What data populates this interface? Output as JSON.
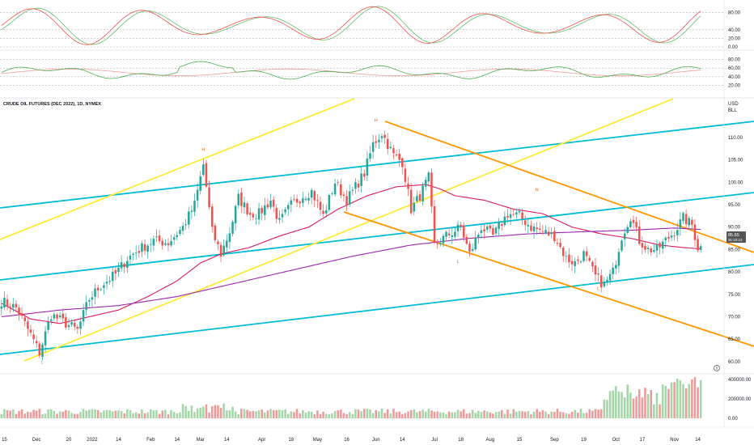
{
  "chart_data": {
    "type": "candlestick",
    "title": "CRUDE OIL FUTURES (DEC 2022), 1D, NYMEX",
    "currency": "USD",
    "unit": "BLL",
    "last_price": "85.65",
    "last_price_sub": "31:10:12",
    "price_ticks": [
      "110.00",
      "105.00",
      "100.00",
      "95.00",
      "90.00",
      "85.00",
      "80.00",
      "75.00",
      "70.00",
      "65.00",
      "60.00"
    ],
    "price_tick_values": [
      110,
      105,
      100,
      95,
      90,
      85,
      80,
      75,
      70,
      65,
      60
    ],
    "ylim": [
      58,
      119
    ],
    "x_tick_labels": [
      {
        "label": "15",
        "bar": 1
      },
      {
        "label": "Dec",
        "bar": 12
      },
      {
        "label": "20",
        "bar": 23
      },
      {
        "label": "2022",
        "bar": 31
      },
      {
        "label": "14",
        "bar": 40
      },
      {
        "label": "Feb",
        "bar": 51
      },
      {
        "label": "14",
        "bar": 60
      },
      {
        "label": "Mar",
        "bar": 68
      },
      {
        "label": "14",
        "bar": 77
      },
      {
        "label": "Apr",
        "bar": 89
      },
      {
        "label": "18",
        "bar": 99
      },
      {
        "label": "May",
        "bar": 108
      },
      {
        "label": "16",
        "bar": 118
      },
      {
        "label": "Jun",
        "bar": 128
      },
      {
        "label": "14",
        "bar": 137
      },
      {
        "label": "Jul",
        "bar": 148
      },
      {
        "label": "18",
        "bar": 157
      },
      {
        "label": "Aug",
        "bar": 167
      },
      {
        "label": "15",
        "bar": 177
      },
      {
        "label": "Sep",
        "bar": 189
      },
      {
        "label": "19",
        "bar": 199
      },
      {
        "label": "Oct",
        "bar": 210
      },
      {
        "label": "17",
        "bar": 219
      },
      {
        "label": "Nov",
        "bar": 230
      },
      {
        "label": "14",
        "bar": 238
      }
    ],
    "close_anchors": [
      [
        0,
        73.5
      ],
      [
        5,
        72
      ],
      [
        10,
        66
      ],
      [
        13,
        62
      ],
      [
        17,
        70.5
      ],
      [
        22,
        68.5
      ],
      [
        26,
        67
      ],
      [
        30,
        74
      ],
      [
        34,
        77
      ],
      [
        39,
        79.5
      ],
      [
        43,
        83
      ],
      [
        47,
        85
      ],
      [
        52,
        87
      ],
      [
        57,
        86.5
      ],
      [
        62,
        90
      ],
      [
        66,
        95
      ],
      [
        69,
        104
      ],
      [
        72,
        89
      ],
      [
        75,
        84
      ],
      [
        78,
        89
      ],
      [
        81,
        96.5
      ],
      [
        85,
        93
      ],
      [
        88,
        93
      ],
      [
        92,
        96
      ],
      [
        95,
        91
      ],
      [
        99,
        95
      ],
      [
        103,
        97
      ],
      [
        106,
        98
      ],
      [
        110,
        92.5
      ],
      [
        114,
        100
      ],
      [
        118,
        96
      ],
      [
        121,
        99
      ],
      [
        124,
        102
      ],
      [
        127,
        108.5
      ],
      [
        130,
        111
      ],
      [
        134,
        106
      ],
      [
        137,
        104.5
      ],
      [
        140,
        94
      ],
      [
        143,
        97
      ],
      [
        146,
        101
      ],
      [
        148,
        86
      ],
      [
        152,
        88
      ],
      [
        157,
        90
      ],
      [
        160,
        84
      ],
      [
        164,
        90
      ],
      [
        168,
        88
      ],
      [
        173,
        93
      ],
      [
        177,
        92.5
      ],
      [
        181,
        90
      ],
      [
        185,
        89
      ],
      [
        189,
        88
      ],
      [
        193,
        83
      ],
      [
        196,
        82
      ],
      [
        199,
        84
      ],
      [
        203,
        79
      ],
      [
        206,
        77
      ],
      [
        209,
        80
      ],
      [
        212,
        88
      ],
      [
        215,
        92.5
      ],
      [
        218,
        87
      ],
      [
        221,
        85
      ],
      [
        224,
        85
      ],
      [
        227,
        87
      ],
      [
        230,
        89
      ],
      [
        233,
        92
      ],
      [
        236,
        90.5
      ],
      [
        238,
        85.5
      ]
    ],
    "ma_short_anchors": [
      [
        0,
        73
      ],
      [
        10,
        69.5
      ],
      [
        20,
        68.5
      ],
      [
        30,
        70
      ],
      [
        40,
        71.5
      ],
      [
        50,
        74.5
      ],
      [
        60,
        78
      ],
      [
        68,
        82
      ],
      [
        75,
        84
      ],
      [
        85,
        85.5
      ],
      [
        95,
        88
      ],
      [
        105,
        90
      ],
      [
        115,
        94
      ],
      [
        125,
        97
      ],
      [
        135,
        99
      ],
      [
        145,
        99.5
      ],
      [
        150,
        98.5
      ],
      [
        155,
        97
      ],
      [
        165,
        96
      ],
      [
        175,
        94
      ],
      [
        185,
        93
      ],
      [
        195,
        90
      ],
      [
        205,
        88.5
      ],
      [
        215,
        87.5
      ],
      [
        225,
        86
      ],
      [
        232,
        85.5
      ],
      [
        238,
        85.2
      ]
    ],
    "ma_long_anchors": [
      [
        0,
        70
      ],
      [
        20,
        71.5
      ],
      [
        40,
        72.5
      ],
      [
        60,
        74.5
      ],
      [
        80,
        77.5
      ],
      [
        100,
        80.5
      ],
      [
        120,
        83.5
      ],
      [
        140,
        86
      ],
      [
        160,
        87.5
      ],
      [
        180,
        88.5
      ],
      [
        200,
        89
      ],
      [
        215,
        89.3
      ],
      [
        230,
        89.8
      ],
      [
        238,
        89.5
      ]
    ],
    "volume_ticks": [
      "400000.00",
      "200000.00",
      "0.00"
    ],
    "volume_tick_values": [
      400000,
      200000,
      0
    ],
    "volume_max": 440000,
    "rsi_ticks": [
      "80.00",
      "60.00",
      "40.00",
      "20.00"
    ],
    "rsi_tick_values": [
      80,
      60,
      40,
      20
    ],
    "stoch_ticks": [
      "80.00",
      "40.00",
      "20.00",
      "0.00"
    ],
    "stoch_tick_values": [
      80,
      40,
      20,
      0
    ],
    "pattern_labels": [
      {
        "text": "L",
        "bar": 14,
        "price": 59.5
      },
      {
        "text": "H",
        "bar": 69,
        "price": 107
      },
      {
        "text": "H",
        "bar": 128,
        "price": 113.5
      },
      {
        "text": "L",
        "bar": 156,
        "price": 82
      },
      {
        "text": "H",
        "bar": 183,
        "price": 98
      },
      {
        "text": "L",
        "bar": 204,
        "price": 76
      }
    ]
  },
  "ui": {
    "colors": {
      "up": "#26a69a",
      "down": "#ef5350",
      "ma_short": "#d81b60",
      "ma_long": "#9c27b0",
      "channel_cyan": "#00bcd4",
      "channel_yellow": "#ffeb3b",
      "channel_orange": "#ff9800",
      "rsi_line": "#4caf50",
      "rsi_signal": "#ef9a9a",
      "stoch_k": "#ef5350",
      "stoch_d": "#66bb6a",
      "price_tag": "#555555"
    },
    "icons": [
      "settings-icon"
    ]
  }
}
